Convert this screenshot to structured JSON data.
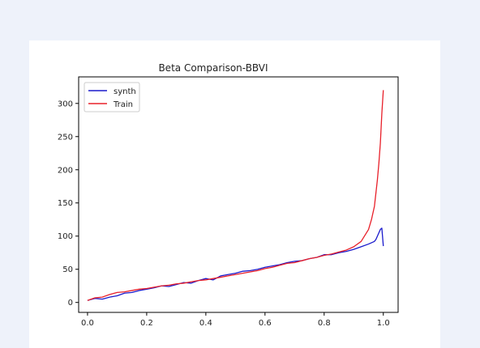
{
  "chart_data": {
    "type": "line",
    "title": "Beta Comparison-BBVI",
    "xlabel": "",
    "ylabel": "",
    "xlim": [
      -0.03,
      1.05
    ],
    "ylim": [
      -15,
      340
    ],
    "xticks": [
      0.0,
      0.2,
      0.4,
      0.6,
      0.8,
      1.0
    ],
    "xtick_labels": [
      "0.0",
      "0.2",
      "0.4",
      "0.6",
      "0.8",
      "1.0"
    ],
    "yticks": [
      0,
      50,
      100,
      150,
      200,
      250,
      300
    ],
    "ytick_labels": [
      "0",
      "50",
      "100",
      "150",
      "200",
      "250",
      "300"
    ],
    "grid": false,
    "legend": "top-left",
    "x": [
      0.0,
      0.025,
      0.05,
      0.075,
      0.1,
      0.125,
      0.15,
      0.175,
      0.2,
      0.225,
      0.25,
      0.275,
      0.3,
      0.325,
      0.35,
      0.375,
      0.4,
      0.425,
      0.45,
      0.475,
      0.5,
      0.525,
      0.55,
      0.575,
      0.6,
      0.625,
      0.65,
      0.675,
      0.7,
      0.725,
      0.75,
      0.775,
      0.8,
      0.825,
      0.85,
      0.875,
      0.9,
      0.925,
      0.95,
      0.96,
      0.97,
      0.975,
      0.98,
      0.985,
      0.99,
      0.995,
      1.0
    ],
    "series": [
      {
        "name": "synth",
        "color": "#1a1acc",
        "values": [
          3,
          6,
          5,
          8,
          10,
          14,
          15,
          18,
          20,
          22,
          25,
          24,
          27,
          30,
          29,
          33,
          36,
          34,
          40,
          42,
          44,
          47,
          48,
          50,
          53,
          55,
          57,
          60,
          62,
          63,
          66,
          68,
          72,
          72,
          75,
          77,
          80,
          84,
          88,
          90,
          92,
          95,
          100,
          105,
          110,
          112,
          85
        ]
      },
      {
        "name": "Train",
        "color": "#e8202a",
        "values": [
          3,
          7,
          8,
          12,
          15,
          16,
          18,
          20,
          21,
          23,
          25,
          26,
          28,
          29,
          31,
          33,
          34,
          36,
          38,
          40,
          42,
          44,
          46,
          48,
          51,
          53,
          56,
          59,
          60,
          63,
          66,
          68,
          71,
          73,
          76,
          79,
          84,
          92,
          110,
          125,
          145,
          165,
          185,
          210,
          240,
          285,
          320
        ]
      }
    ]
  }
}
